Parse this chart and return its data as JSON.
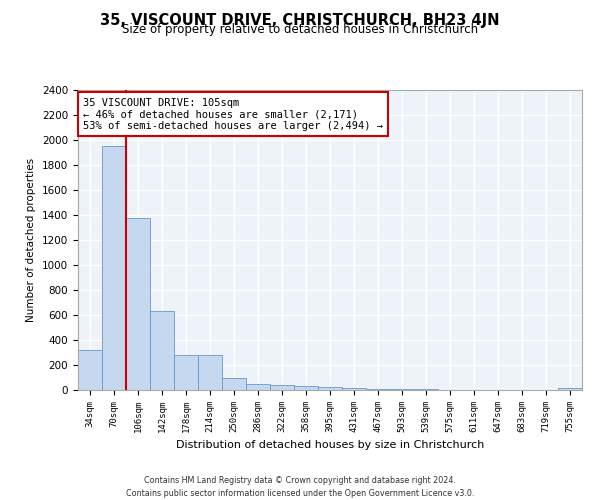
{
  "title": "35, VISCOUNT DRIVE, CHRISTCHURCH, BH23 4JN",
  "subtitle": "Size of property relative to detached houses in Christchurch",
  "xlabel": "Distribution of detached houses by size in Christchurch",
  "ylabel": "Number of detached properties",
  "footer_line1": "Contains HM Land Registry data © Crown copyright and database right 2024.",
  "footer_line2": "Contains public sector information licensed under the Open Government Licence v3.0.",
  "bin_labels": [
    "34sqm",
    "70sqm",
    "106sqm",
    "142sqm",
    "178sqm",
    "214sqm",
    "250sqm",
    "286sqm",
    "322sqm",
    "358sqm",
    "395sqm",
    "431sqm",
    "467sqm",
    "503sqm",
    "539sqm",
    "575sqm",
    "611sqm",
    "647sqm",
    "683sqm",
    "719sqm",
    "755sqm"
  ],
  "bar_values": [
    320,
    1950,
    1380,
    630,
    280,
    280,
    100,
    50,
    40,
    30,
    25,
    20,
    10,
    10,
    5,
    3,
    3,
    2,
    2,
    2,
    20
  ],
  "bar_color": "#c5d8ef",
  "bar_edgecolor": "#6699cc",
  "background_color": "#eef2f9",
  "grid_color": "#ffffff",
  "ylim": [
    0,
    2400
  ],
  "yticks": [
    0,
    200,
    400,
    600,
    800,
    1000,
    1200,
    1400,
    1600,
    1800,
    2000,
    2200,
    2400
  ],
  "property_label": "35 VISCOUNT DRIVE: 105sqm",
  "annotation_line1": "← 46% of detached houses are smaller (2,171)",
  "annotation_line2": "53% of semi-detached houses are larger (2,494) →",
  "vline_color": "#cc0000",
  "vline_bin_index": 1.5,
  "annotation_box_color": "#ffffff",
  "annotation_box_edgecolor": "#cc0000"
}
